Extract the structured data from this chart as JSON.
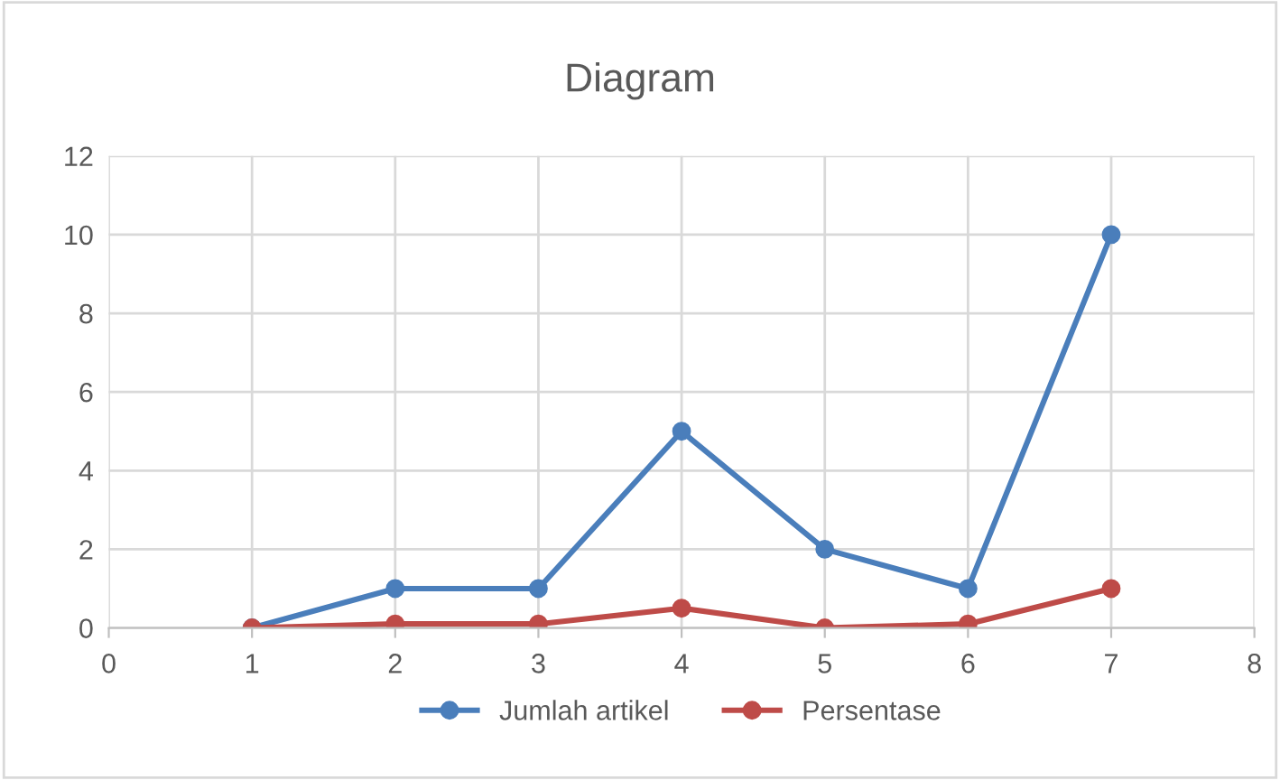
{
  "chart_data": {
    "type": "line",
    "title": "Diagram",
    "x": [
      1,
      2,
      3,
      4,
      5,
      6,
      7
    ],
    "series": [
      {
        "name": "Jumlah artikel",
        "color": "#4a7ebb",
        "values": [
          0,
          1,
          1,
          5,
          2,
          1,
          10
        ]
      },
      {
        "name": "Persentase",
        "color": "#be4b48",
        "values": [
          0,
          0.1,
          0.1,
          0.5,
          0,
          0.1,
          1
        ]
      }
    ],
    "xlim": [
      0,
      8
    ],
    "xticks": [
      0,
      1,
      2,
      3,
      4,
      5,
      6,
      7,
      8
    ],
    "ylim": [
      0,
      12
    ],
    "yticks": [
      0,
      2,
      4,
      6,
      8,
      10,
      12
    ],
    "grid": true,
    "legend": "bottom",
    "marker": "circle",
    "line_style": "solid"
  }
}
